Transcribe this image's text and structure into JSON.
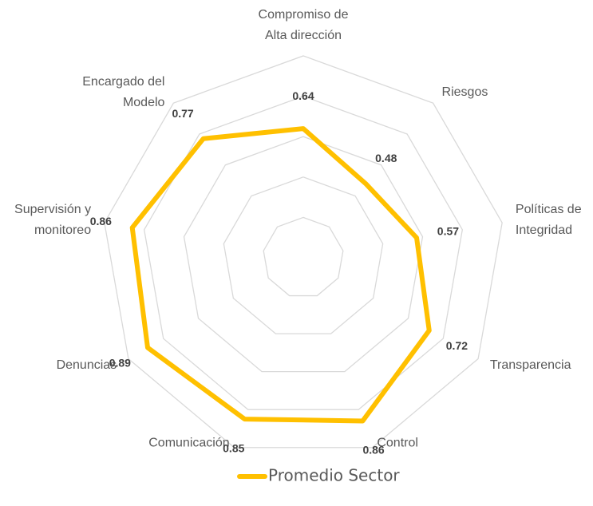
{
  "chart_data": {
    "type": "radar",
    "categories": [
      "Compromiso de\nAlta dirección",
      "Riesgos",
      "Políticas de\nIntegridad",
      "Transparencia",
      "Control",
      "Comunicación",
      "Denuncias",
      "Supervisión y\nmonitoreo",
      "Encargado del\nModelo"
    ],
    "series": [
      {
        "name": "Promedio Sector",
        "color": "#FFC000",
        "values": [
          0.64,
          0.48,
          0.57,
          0.72,
          0.86,
          0.85,
          0.89,
          0.86,
          0.77
        ]
      }
    ],
    "ylim": [
      0,
      1
    ],
    "yticks": [
      0.2,
      0.4,
      0.6,
      0.8,
      1
    ],
    "grid": true,
    "legend": "bottom"
  }
}
